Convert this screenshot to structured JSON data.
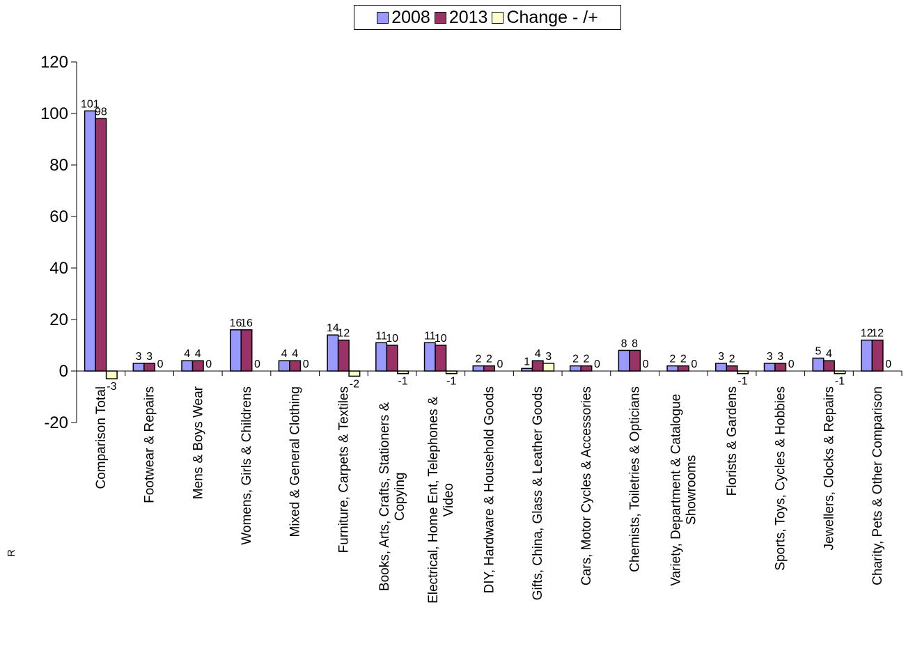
{
  "chart_data": {
    "type": "bar",
    "categories": [
      "Comparison Total",
      "Footwear & Repairs",
      "Mens & Boys Wear",
      "Womens, Girls & Childrens",
      "Mixed & General Clothing",
      "Furniture, Carpets & Textiles",
      "Books, Arts, Crafts, Stationers & Copying",
      "Electrical, Home Ent, Telephones & Video",
      "DIY, Hardware & Household Goods",
      "Gifts, China, Glass & Leather Goods",
      "Cars, Motor Cycles & Accessories",
      "Chemists, Toiletries & Opticians",
      "Variety, Department & Catalogue Showrooms",
      "Florists & Gardens",
      "Sports, Toys, Cycles & Hobbies",
      "Jewellers, Clocks & Repairs",
      "Charity, Pets & Other Comparison"
    ],
    "series": [
      {
        "name": "2008",
        "color": "#9999ff",
        "values": [
          101,
          3,
          4,
          16,
          4,
          14,
          11,
          11,
          2,
          1,
          2,
          8,
          2,
          3,
          3,
          5,
          12
        ]
      },
      {
        "name": "2013",
        "color": "#993366",
        "values": [
          98,
          3,
          4,
          16,
          4,
          12,
          10,
          10,
          2,
          4,
          2,
          8,
          2,
          2,
          3,
          4,
          12
        ]
      },
      {
        "name": "Change - /+",
        "color": "#ffffcc",
        "values": [
          -3,
          0,
          0,
          0,
          0,
          -2,
          -1,
          -1,
          0,
          3,
          0,
          0,
          0,
          -1,
          0,
          -1,
          0
        ]
      }
    ],
    "ylim": [
      -20,
      120
    ],
    "yticks": [
      -20,
      0,
      20,
      40,
      60,
      80,
      100,
      120
    ],
    "legend_position": "top-center",
    "grid": false
  },
  "side_mark": "R"
}
